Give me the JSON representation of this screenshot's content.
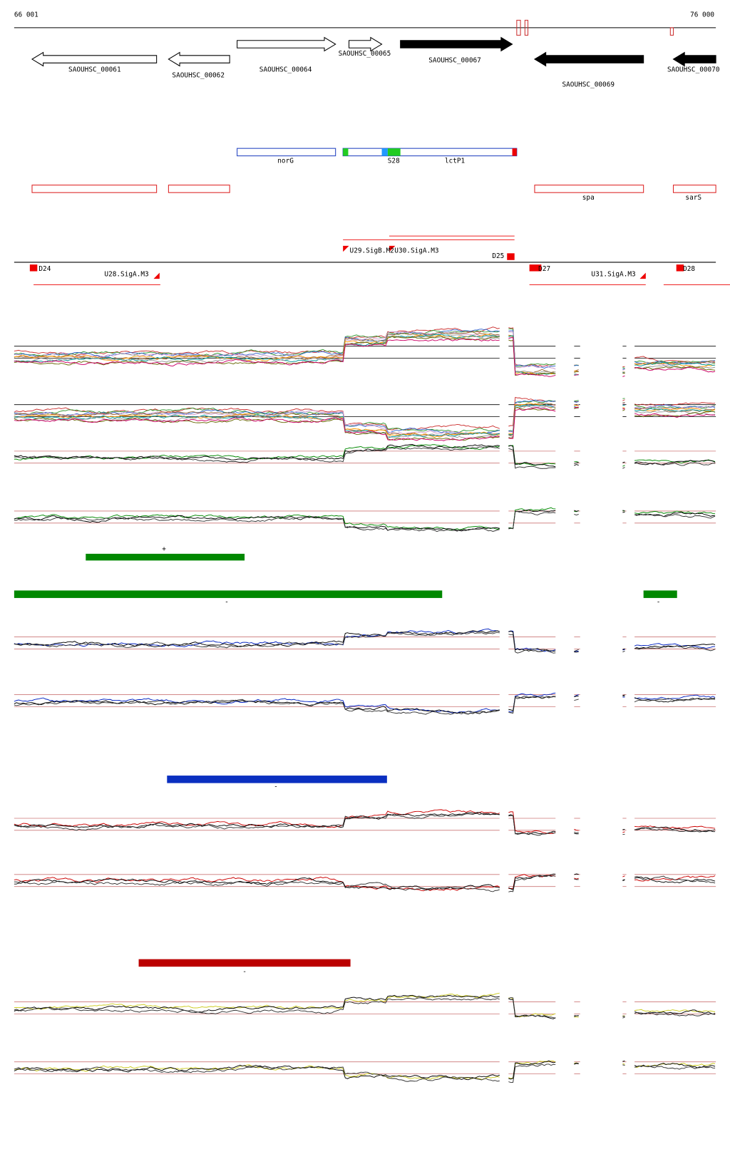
{
  "ruler": {
    "start": "66 001",
    "end": "76 000"
  },
  "genes": [
    "SAOUHSC_00061",
    "SAOUHSC_00062",
    "SAOUHSC_00064",
    "SAOUHSC_00065",
    "SAOUHSC_00067",
    "SAOUHSC_00069",
    "SAOUHSC_00070"
  ],
  "features": [
    "norG",
    "S28",
    "lctP1",
    "spa",
    "sarS"
  ],
  "promoters": [
    "D24",
    "U28.SigA.M3",
    "U29.SigB.M2",
    "U30.SigA.M3",
    "D25",
    "D27",
    "U31.SigA.M3",
    "D28"
  ],
  "strand_marks": [
    "+",
    "-",
    "-",
    "-",
    "-"
  ]
}
